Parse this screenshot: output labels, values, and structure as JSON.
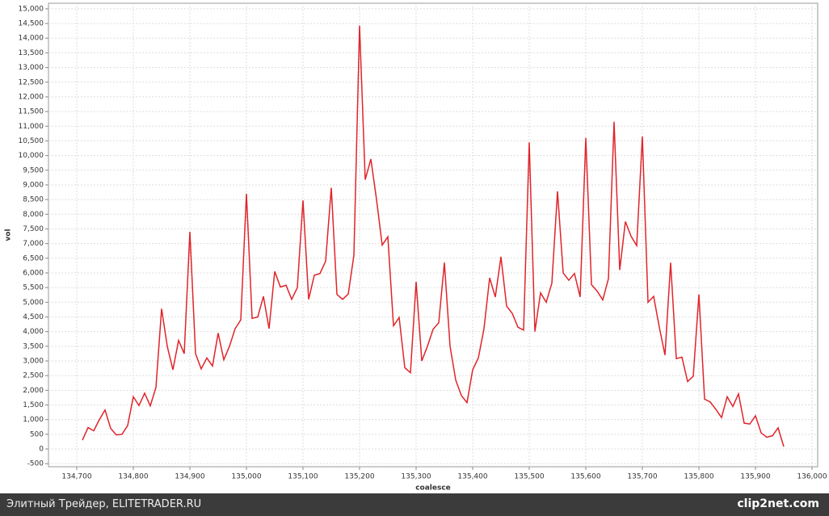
{
  "chart_data": {
    "type": "line",
    "x_label": "coalesce",
    "y_label": "vol",
    "color": "#e0242a",
    "grid": true,
    "x": [
      134710,
      134720,
      134730,
      134740,
      134750,
      134760,
      134770,
      134780,
      134790,
      134800,
      134810,
      134820,
      134830,
      134840,
      134850,
      134860,
      134870,
      134880,
      134890,
      134900,
      134910,
      134920,
      134930,
      134940,
      134950,
      134960,
      134970,
      134980,
      134990,
      135000,
      135010,
      135020,
      135030,
      135040,
      135050,
      135060,
      135070,
      135080,
      135090,
      135100,
      135110,
      135120,
      135130,
      135140,
      135150,
      135160,
      135170,
      135180,
      135190,
      135200,
      135210,
      135220,
      135230,
      135240,
      135250,
      135260,
      135270,
      135280,
      135290,
      135300,
      135310,
      135320,
      135330,
      135340,
      135350,
      135360,
      135370,
      135380,
      135390,
      135400,
      135410,
      135420,
      135430,
      135440,
      135450,
      135460,
      135470,
      135480,
      135490,
      135500,
      135510,
      135520,
      135530,
      135540,
      135550,
      135560,
      135570,
      135580,
      135590,
      135600,
      135610,
      135620,
      135630,
      135640,
      135650,
      135660,
      135670,
      135680,
      135690,
      135700,
      135710,
      135720,
      135730,
      135740,
      135750,
      135760,
      135770,
      135780,
      135790,
      135800,
      135810,
      135820,
      135830,
      135840,
      135850,
      135860,
      135870,
      135880,
      135890,
      135900,
      135910,
      135920,
      135930,
      135940,
      135950
    ],
    "values": [
      300,
      730,
      620,
      1000,
      1330,
      700,
      480,
      500,
      800,
      1780,
      1480,
      1900,
      1470,
      2100,
      4780,
      3500,
      2700,
      3700,
      3250,
      7400,
      3250,
      2730,
      3100,
      2830,
      3950,
      3040,
      3500,
      4100,
      4400,
      8700,
      4450,
      4500,
      5200,
      4100,
      6050,
      5520,
      5580,
      5100,
      5500,
      8470,
      5100,
      5920,
      5980,
      6400,
      8900,
      5270,
      5100,
      5280,
      6600,
      14430,
      9180,
      9880,
      8500,
      6950,
      7230,
      4200,
      4480,
      2770,
      2600,
      5700,
      3000,
      3500,
      4080,
      4300,
      6350,
      3500,
      2350,
      1820,
      1580,
      2700,
      3100,
      4100,
      5830,
      5180,
      6550,
      4870,
      4620,
      4150,
      4050,
      10450,
      4000,
      5320,
      5000,
      5650,
      8780,
      6000,
      5750,
      5980,
      5180,
      10600,
      5600,
      5380,
      5080,
      5800,
      11150,
      6100,
      7750,
      7250,
      6930,
      10650,
      5000,
      5200,
      4150,
      3200,
      6350,
      3080,
      3130,
      2300,
      2480,
      5270,
      1700,
      1600,
      1350,
      1070,
      1780,
      1450,
      1880,
      880,
      850,
      1130,
      550,
      400,
      450,
      720,
      80
    ],
    "xlim": [
      134650,
      136010
    ],
    "xticks": [
      {
        "value": 134700,
        "label": "134,700"
      },
      {
        "value": 134800,
        "label": "134,800"
      },
      {
        "value": 134900,
        "label": "134,900"
      },
      {
        "value": 135000,
        "label": "135,000"
      },
      {
        "value": 135100,
        "label": "135,100"
      },
      {
        "value": 135200,
        "label": "135,200"
      },
      {
        "value": 135300,
        "label": "135,300"
      },
      {
        "value": 135400,
        "label": "135,400"
      },
      {
        "value": 135500,
        "label": "135,500"
      },
      {
        "value": 135600,
        "label": "135,600"
      },
      {
        "value": 135700,
        "label": "135,700"
      },
      {
        "value": 135800,
        "label": "135,800"
      },
      {
        "value": 135900,
        "label": "135,900"
      },
      {
        "value": 136000,
        "label": "136,000"
      }
    ],
    "ylim": [
      -605,
      15190
    ],
    "yticks": [
      -500,
      0,
      500,
      {
        "value": 1000,
        "label": "1,000"
      },
      {
        "value": 1500,
        "label": "1,500"
      },
      {
        "value": 2000,
        "label": "2,000"
      },
      {
        "value": 2500,
        "label": "2,500"
      },
      {
        "value": 3000,
        "label": "3,000"
      },
      {
        "value": 3500,
        "label": "3,500"
      },
      {
        "value": 4000,
        "label": "4,000"
      },
      {
        "value": 4500,
        "label": "4,500"
      },
      {
        "value": 5000,
        "label": "5,000"
      },
      {
        "value": 5500,
        "label": "5,500"
      },
      {
        "value": 6000,
        "label": "6,000"
      },
      {
        "value": 6500,
        "label": "6,500"
      },
      {
        "value": 7000,
        "label": "7,000"
      },
      {
        "value": 7500,
        "label": "7,500"
      },
      {
        "value": 8000,
        "label": "8,000"
      },
      {
        "value": 8500,
        "label": "8,500"
      },
      {
        "value": 9000,
        "label": "9,000"
      },
      {
        "value": 9500,
        "label": "9,500"
      },
      {
        "value": 10000,
        "label": "10,000"
      },
      {
        "value": 10500,
        "label": "10,500"
      },
      {
        "value": 11000,
        "label": "11,000"
      },
      {
        "value": 11500,
        "label": "11,500"
      },
      {
        "value": 12000,
        "label": "12,000"
      },
      {
        "value": 12500,
        "label": "12,500"
      },
      {
        "value": 13000,
        "label": "13,000"
      },
      {
        "value": 13500,
        "label": "13,500"
      },
      {
        "value": 14000,
        "label": "14,000"
      },
      {
        "value": 14500,
        "label": "14,500"
      },
      {
        "value": 15000,
        "label": "15,000"
      }
    ]
  },
  "footer": {
    "text": "Элитный Трейдер, ELITETRADER.RU",
    "brand": "clip2net.com"
  }
}
